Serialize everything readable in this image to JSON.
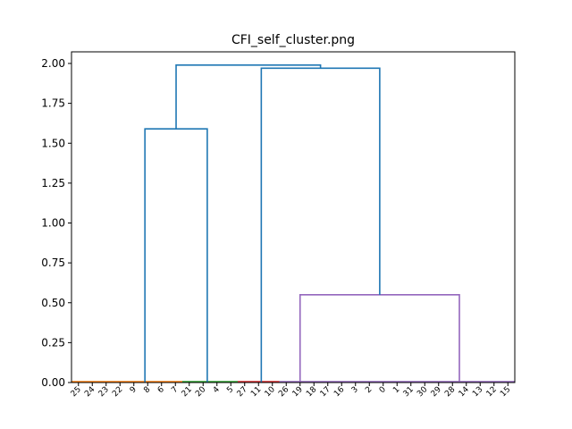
{
  "chart_data": {
    "type": "dendrogram",
    "title": "CFI_self_cluster.png",
    "xlabel": "",
    "ylabel": "",
    "ylim": [
      0,
      2.0
    ],
    "yticks": [
      "0.00",
      "0.25",
      "0.50",
      "0.75",
      "1.00",
      "1.25",
      "1.50",
      "1.75",
      "2.00"
    ],
    "leaves": [
      "25",
      "24",
      "23",
      "22",
      "9",
      "8",
      "6",
      "7",
      "21",
      "20",
      "4",
      "5",
      "27",
      "11",
      "10",
      "26",
      "19",
      "18",
      "17",
      "16",
      "3",
      "2",
      "0",
      "1",
      "31",
      "30",
      "29",
      "28",
      "14",
      "13",
      "12",
      "15"
    ],
    "colors": {
      "link": "#1f77b4",
      "cluster_1": "#ff7f0e",
      "cluster_2": "#2ca02c",
      "cluster_3": "#d62728",
      "cluster_4": "#9467bd"
    },
    "low_clusters": [
      {
        "from_leaf": 0,
        "to_leaf": 7,
        "color": "cluster_1"
      },
      {
        "from_leaf": 8,
        "to_leaf": 11,
        "color": "cluster_2"
      },
      {
        "from_leaf": 12,
        "to_leaf": 14,
        "color": "cluster_3"
      },
      {
        "from_leaf": 15,
        "to_leaf": 31,
        "color": "cluster_4"
      }
    ],
    "merges": [
      {
        "left": [
          4.8,
          0.0
        ],
        "right": [
          9.3,
          0.0
        ],
        "height": 1.59,
        "color": "link"
      },
      {
        "left": [
          16.0,
          0.0
        ],
        "right": [
          27.5,
          0.0
        ],
        "height": 0.55,
        "color": "cluster_4"
      },
      {
        "left": [
          13.2,
          0.0
        ],
        "right": [
          21.75,
          0.55
        ],
        "height": 1.97,
        "color": "link"
      },
      {
        "left": [
          7.05,
          1.59
        ],
        "right": [
          17.475,
          1.97
        ],
        "height": 1.99,
        "color": "link"
      }
    ]
  }
}
